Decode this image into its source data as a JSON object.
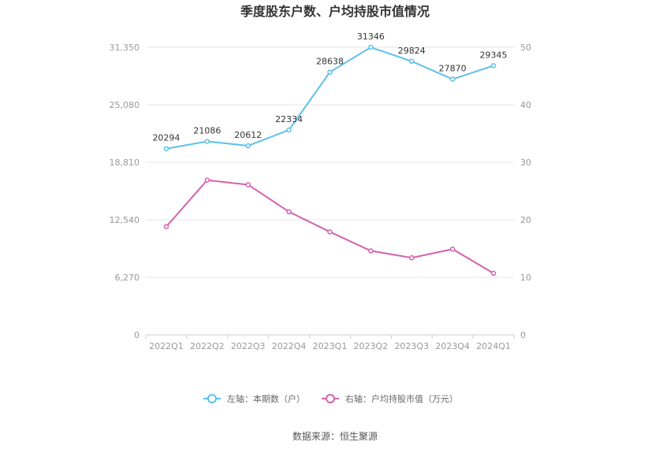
{
  "chart_data": {
    "type": "line",
    "title": "季度股东户数、户均持股市值情况",
    "categories": [
      "2022Q1",
      "2022Q2",
      "2022Q3",
      "2022Q4",
      "2023Q1",
      "2023Q2",
      "2023Q3",
      "2023Q4",
      "2024Q1"
    ],
    "left_axis": {
      "ticks": [
        "0",
        "6,270",
        "12,540",
        "18,810",
        "25,080",
        "31,350"
      ],
      "ylim": [
        0,
        31350
      ]
    },
    "right_axis": {
      "ticks": [
        "0",
        "10",
        "20",
        "30",
        "40",
        "50"
      ],
      "ylim": [
        0,
        50
      ]
    },
    "series": [
      {
        "name": "左轴：本期数（户）",
        "axis": "left",
        "color": "#5bc0eb",
        "values": [
          20294,
          21086,
          20612,
          22334,
          28638,
          31346,
          29824,
          27870,
          29345
        ],
        "labels": [
          "20294",
          "21086",
          "20612",
          "22334",
          "28638",
          "31346",
          "29824",
          "27870",
          "29345"
        ]
      },
      {
        "name": "右轴：户均持股市值（万元）",
        "axis": "right",
        "color": "#d462ad",
        "values": [
          18.8,
          26.9,
          26.1,
          21.4,
          17.9,
          14.6,
          13.4,
          14.9,
          10.7
        ]
      }
    ],
    "grid": true,
    "legend_position": "bottom"
  },
  "source": "数据来源：恒生聚源"
}
